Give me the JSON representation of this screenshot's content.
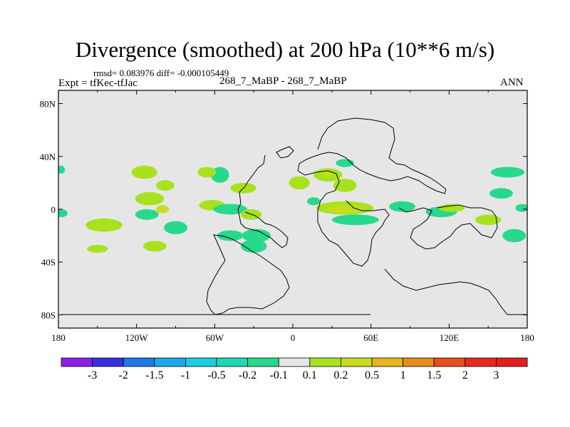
{
  "title": "Divergence (smoothed) at 200 hPa (10**6 m/s)",
  "stats_text": "rmsd= 0.083976 diff= -0.000105449",
  "expt_text": "Expt = tfKec-tfJac",
  "cases_text": "268_7_MaBP - 268_7_MaBP",
  "season_text": "ANN",
  "chart_data": {
    "type": "heatmap",
    "title": "Divergence (smoothed) at 200 hPa (10**6 m/s)",
    "xlim": [
      -180,
      180
    ],
    "ylim": [
      -90,
      90
    ],
    "x_ticks": [
      {
        "value": -180,
        "label": "180"
      },
      {
        "value": -120,
        "label": "120W"
      },
      {
        "value": -60,
        "label": "60W"
      },
      {
        "value": 0,
        "label": "0"
      },
      {
        "value": 60,
        "label": "60E"
      },
      {
        "value": 120,
        "label": "120E"
      },
      {
        "value": 180,
        "label": "180"
      }
    ],
    "y_ticks": [
      {
        "value": 80,
        "label": "80N"
      },
      {
        "value": 40,
        "label": "40N"
      },
      {
        "value": 0,
        "label": "0"
      },
      {
        "value": -40,
        "label": "40S"
      },
      {
        "value": -80,
        "label": "80S"
      }
    ],
    "background_color": "#e6e6e6",
    "colorbar": {
      "labels": [
        "-3",
        "-2",
        "-1.5",
        "-1",
        "-0.5",
        "-0.2",
        "-0.1",
        "0.1",
        "0.2",
        "0.5",
        "1",
        "1.5",
        "2",
        "3"
      ],
      "colors": [
        "#8b1fe8",
        "#3a2fe0",
        "#1e78e8",
        "#1ea8e8",
        "#1ecce0",
        "#1ed8b4",
        "#28d88c",
        "#e6e6e6",
        "#a8e21e",
        "#c8dc1e",
        "#e6b41e",
        "#e68c1e",
        "#e6501e",
        "#e62a1e",
        "#e61e1e"
      ]
    },
    "features": [
      {
        "lon": -114,
        "lat": 28,
        "rx": 10,
        "ry": 5,
        "value": 0.25
      },
      {
        "lon": -98,
        "lat": 18,
        "rx": 7,
        "ry": 4,
        "value": 0.25
      },
      {
        "lon": -110,
        "lat": 8,
        "rx": 11,
        "ry": 5,
        "value": 0.25
      },
      {
        "lon": -112,
        "lat": -4,
        "rx": 9,
        "ry": 4,
        "value": -0.3
      },
      {
        "lon": -90,
        "lat": -14,
        "rx": 9,
        "ry": 5,
        "value": -0.3
      },
      {
        "lon": -100,
        "lat": 0,
        "rx": 5,
        "ry": 3,
        "value": 0.6
      },
      {
        "lon": -145,
        "lat": -12,
        "rx": 14,
        "ry": 5,
        "value": 0.25
      },
      {
        "lon": -150,
        "lat": -30,
        "rx": 8,
        "ry": 3,
        "value": 0.25
      },
      {
        "lon": -106,
        "lat": -28,
        "rx": 9,
        "ry": 4,
        "value": 0.25
      },
      {
        "lon": -62,
        "lat": 3,
        "rx": 10,
        "ry": 4,
        "value": 0.25
      },
      {
        "lon": -56,
        "lat": 26,
        "rx": 7,
        "ry": 6,
        "value": -0.3
      },
      {
        "lon": -66,
        "lat": 28,
        "rx": 7,
        "ry": 4,
        "value": 0.25
      },
      {
        "lon": -38,
        "lat": 16,
        "rx": 10,
        "ry": 4,
        "value": 0.25
      },
      {
        "lon": -48,
        "lat": 0,
        "rx": 13,
        "ry": 4,
        "value": -0.3
      },
      {
        "lon": -32,
        "lat": -4,
        "rx": 8,
        "ry": 4,
        "value": 0.25
      },
      {
        "lon": -28,
        "lat": -20,
        "rx": 11,
        "ry": 5,
        "value": -0.3
      },
      {
        "lon": -48,
        "lat": -20,
        "rx": 10,
        "ry": 4,
        "value": -0.3
      },
      {
        "lon": -30,
        "lat": -28,
        "rx": 10,
        "ry": 5,
        "value": -0.3
      },
      {
        "lon": 5,
        "lat": 20,
        "rx": 8,
        "ry": 5,
        "value": 0.25
      },
      {
        "lon": 16,
        "lat": 6,
        "rx": 5,
        "ry": 3,
        "value": -0.3
      },
      {
        "lon": 27,
        "lat": 26,
        "rx": 11,
        "ry": 5,
        "value": 0.25
      },
      {
        "lon": 27,
        "lat": 27,
        "rx": 4,
        "ry": 2,
        "value": 0.6
      },
      {
        "lon": 40,
        "lat": 18,
        "rx": 9,
        "ry": 5,
        "value": 0.25
      },
      {
        "lon": 40,
        "lat": 35,
        "rx": 7,
        "ry": 3,
        "value": -0.3
      },
      {
        "lon": 40,
        "lat": 1,
        "rx": 22,
        "ry": 5,
        "value": 0.25
      },
      {
        "lon": 40,
        "lat": 0,
        "rx": 14,
        "ry": 3,
        "value": 0.6
      },
      {
        "lon": 48,
        "lat": -8,
        "rx": 18,
        "ry": 4,
        "value": -0.3
      },
      {
        "lon": 84,
        "lat": 2,
        "rx": 10,
        "ry": 4,
        "value": -0.3
      },
      {
        "lon": 114,
        "lat": -2,
        "rx": 12,
        "ry": 4,
        "value": -0.3
      },
      {
        "lon": 122,
        "lat": 1,
        "rx": 10,
        "ry": 3,
        "value": 0.25
      },
      {
        "lon": 150,
        "lat": -8,
        "rx": 10,
        "ry": 4,
        "value": 0.25
      },
      {
        "lon": 165,
        "lat": 28,
        "rx": 13,
        "ry": 4,
        "value": -0.3
      },
      {
        "lon": 160,
        "lat": 12,
        "rx": 9,
        "ry": 4,
        "value": -0.3
      },
      {
        "lon": 176,
        "lat": 1,
        "rx": 5,
        "ry": 3,
        "value": -0.3
      },
      {
        "lon": 170,
        "lat": -20,
        "rx": 9,
        "ry": 5,
        "value": -0.3
      },
      {
        "lon": -178,
        "lat": -3,
        "rx": 5,
        "ry": 3,
        "value": -0.3
      },
      {
        "lon": -178,
        "lat": 30,
        "rx": 3,
        "ry": 3,
        "value": -0.3
      }
    ]
  }
}
